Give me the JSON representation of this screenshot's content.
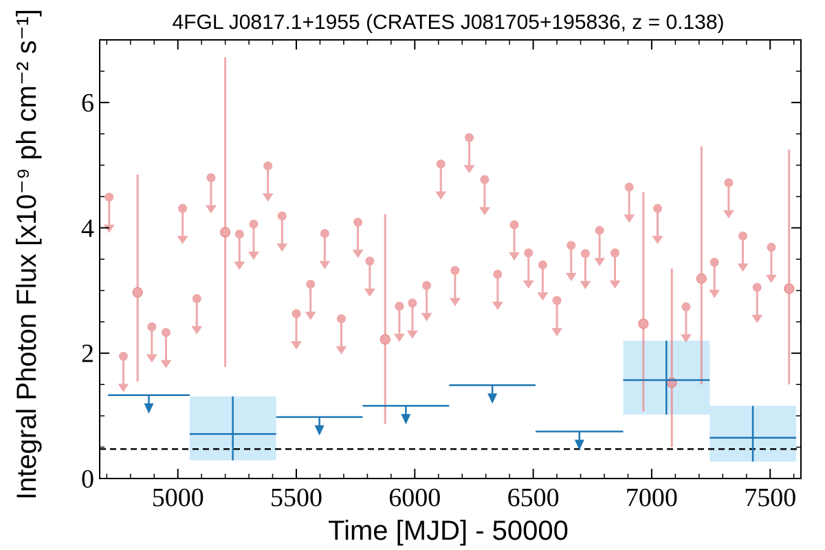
{
  "chart_data": {
    "type": "scatter",
    "title": "4FGL J0817.1+1955 (CRATES J081705+195836, z = 0.138)",
    "xlabel": "Time [MJD] - 50000",
    "ylabel": "Integral Photon Flux [x10⁻⁹ ph cm⁻² s⁻¹]",
    "xlim": [
      4670,
      7630
    ],
    "ylim": [
      0,
      7.0
    ],
    "xticks": [
      5000,
      5500,
      6000,
      6500,
      7000,
      7500
    ],
    "xtick_labels": [
      "5000",
      "5500",
      "6000",
      "6500",
      "7000",
      "7500"
    ],
    "yticks": [
      0,
      2,
      4,
      6
    ],
    "ytick_labels": [
      "0",
      "2",
      "4",
      "6"
    ],
    "grid": false,
    "reference_line": {
      "y": 0.47,
      "style": "dashed",
      "color": "#000000"
    },
    "colors": {
      "monthly": "#e8878a",
      "yearly": "#1f77b4",
      "yearly_band": "#cdeaf9"
    },
    "monthly_detections": [
      {
        "x": 4830,
        "y": 2.97,
        "yerr_low": 1.55,
        "yerr_high": 4.85
      },
      {
        "x": 5200,
        "y": 3.93,
        "yerr_low": 1.78,
        "yerr_high": 6.72
      },
      {
        "x": 5875,
        "y": 2.22,
        "yerr_low": 0.87,
        "yerr_high": 4.22
      },
      {
        "x": 6965,
        "y": 2.47,
        "yerr_low": 1.07,
        "yerr_high": 4.57
      },
      {
        "x": 7085,
        "y": 1.53,
        "yerr_low": 0.5,
        "yerr_high": 3.35
      },
      {
        "x": 7210,
        "y": 3.19,
        "yerr_low": 1.5,
        "yerr_high": 5.3
      },
      {
        "x": 7580,
        "y": 3.03,
        "yerr_low": 1.5,
        "yerr_high": 5.25
      }
    ],
    "monthly_upper_limits": [
      {
        "x": 4710,
        "y": 4.49
      },
      {
        "x": 4770,
        "y": 1.95
      },
      {
        "x": 4890,
        "y": 2.42
      },
      {
        "x": 4950,
        "y": 2.33
      },
      {
        "x": 5020,
        "y": 4.31
      },
      {
        "x": 5080,
        "y": 2.87
      },
      {
        "x": 5140,
        "y": 4.8
      },
      {
        "x": 5260,
        "y": 3.9
      },
      {
        "x": 5320,
        "y": 4.06
      },
      {
        "x": 5380,
        "y": 4.99
      },
      {
        "x": 5440,
        "y": 4.19
      },
      {
        "x": 5500,
        "y": 2.63
      },
      {
        "x": 5560,
        "y": 3.1
      },
      {
        "x": 5620,
        "y": 3.91
      },
      {
        "x": 5690,
        "y": 2.55
      },
      {
        "x": 5760,
        "y": 4.09
      },
      {
        "x": 5810,
        "y": 3.47
      },
      {
        "x": 5935,
        "y": 2.75
      },
      {
        "x": 5990,
        "y": 2.8
      },
      {
        "x": 6050,
        "y": 3.08
      },
      {
        "x": 6110,
        "y": 5.02
      },
      {
        "x": 6170,
        "y": 3.32
      },
      {
        "x": 6230,
        "y": 5.44
      },
      {
        "x": 6295,
        "y": 4.77
      },
      {
        "x": 6350,
        "y": 3.26
      },
      {
        "x": 6420,
        "y": 4.05
      },
      {
        "x": 6480,
        "y": 3.6
      },
      {
        "x": 6540,
        "y": 3.41
      },
      {
        "x": 6600,
        "y": 2.84
      },
      {
        "x": 6660,
        "y": 3.72
      },
      {
        "x": 6720,
        "y": 3.59
      },
      {
        "x": 6780,
        "y": 3.96
      },
      {
        "x": 6845,
        "y": 3.6
      },
      {
        "x": 6905,
        "y": 4.65
      },
      {
        "x": 7025,
        "y": 4.31
      },
      {
        "x": 7145,
        "y": 2.74
      },
      {
        "x": 7265,
        "y": 3.45
      },
      {
        "x": 7325,
        "y": 4.72
      },
      {
        "x": 7385,
        "y": 3.87
      },
      {
        "x": 7445,
        "y": 3.05
      },
      {
        "x": 7505,
        "y": 3.69
      }
    ],
    "yearly_detections": [
      {
        "x_start": 5050,
        "x_end": 5415,
        "x": 5232,
        "y": 0.71,
        "y_low": 0.29,
        "y_high": 1.31
      },
      {
        "x_start": 6880,
        "x_end": 7245,
        "x": 7062,
        "y": 1.57,
        "y_low": 1.02,
        "y_high": 2.2
      },
      {
        "x_start": 7245,
        "x_end": 7610,
        "x": 7427,
        "y": 0.65,
        "y_low": 0.27,
        "y_high": 1.16
      }
    ],
    "yearly_upper_limits": [
      {
        "x_start": 4705,
        "x_end": 5050,
        "y": 1.33
      },
      {
        "x_start": 5415,
        "x_end": 5780,
        "y": 0.98
      },
      {
        "x_start": 5780,
        "x_end": 6145,
        "y": 1.16
      },
      {
        "x_start": 6145,
        "x_end": 6510,
        "y": 1.49
      },
      {
        "x_start": 6510,
        "x_end": 6880,
        "y": 0.75
      }
    ]
  }
}
